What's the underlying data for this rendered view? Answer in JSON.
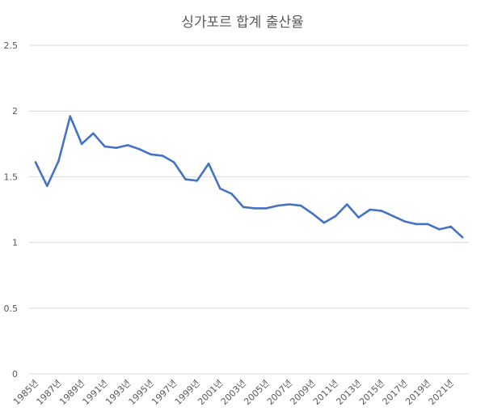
{
  "chart_data": {
    "type": "line",
    "title": "싱가포르 합계 출산율",
    "xlabel": "",
    "ylabel": "",
    "ylim": [
      0,
      2.5
    ],
    "y_ticks": [
      "0",
      "0.5",
      "1",
      "1.5",
      "2",
      "2.5"
    ],
    "grid": true,
    "legend": "none",
    "x": [
      "1985년",
      "1986년",
      "1987년",
      "1988년",
      "1989년",
      "1990년",
      "1991년",
      "1992년",
      "1993년",
      "1994년",
      "1995년",
      "1996년",
      "1997년",
      "1998년",
      "1999년",
      "2000년",
      "2001년",
      "2002년",
      "2003년",
      "2004년",
      "2005년",
      "2006년",
      "2007년",
      "2008년",
      "2009년",
      "2010년",
      "2011년",
      "2012년",
      "2013년",
      "2014년",
      "2015년",
      "2016년",
      "2017년",
      "2018년",
      "2019년",
      "2020년",
      "2021년",
      "2022년"
    ],
    "x_tick_labels": [
      "1985년",
      "1987년",
      "1989년",
      "1991년",
      "1993년",
      "1995년",
      "1997년",
      "1999년",
      "2001년",
      "2003년",
      "2005년",
      "2007년",
      "2009년",
      "2011년",
      "2013년",
      "2015년",
      "2017년",
      "2019년",
      "2021년"
    ],
    "series": [
      {
        "color": "#4472c4",
        "values": [
          1.61,
          1.43,
          1.62,
          1.96,
          1.75,
          1.83,
          1.73,
          1.72,
          1.74,
          1.71,
          1.67,
          1.66,
          1.61,
          1.48,
          1.47,
          1.6,
          1.41,
          1.37,
          1.27,
          1.26,
          1.26,
          1.28,
          1.29,
          1.28,
          1.22,
          1.15,
          1.2,
          1.29,
          1.19,
          1.25,
          1.24,
          1.2,
          1.16,
          1.14,
          1.14,
          1.1,
          1.12,
          1.04
        ]
      }
    ]
  }
}
